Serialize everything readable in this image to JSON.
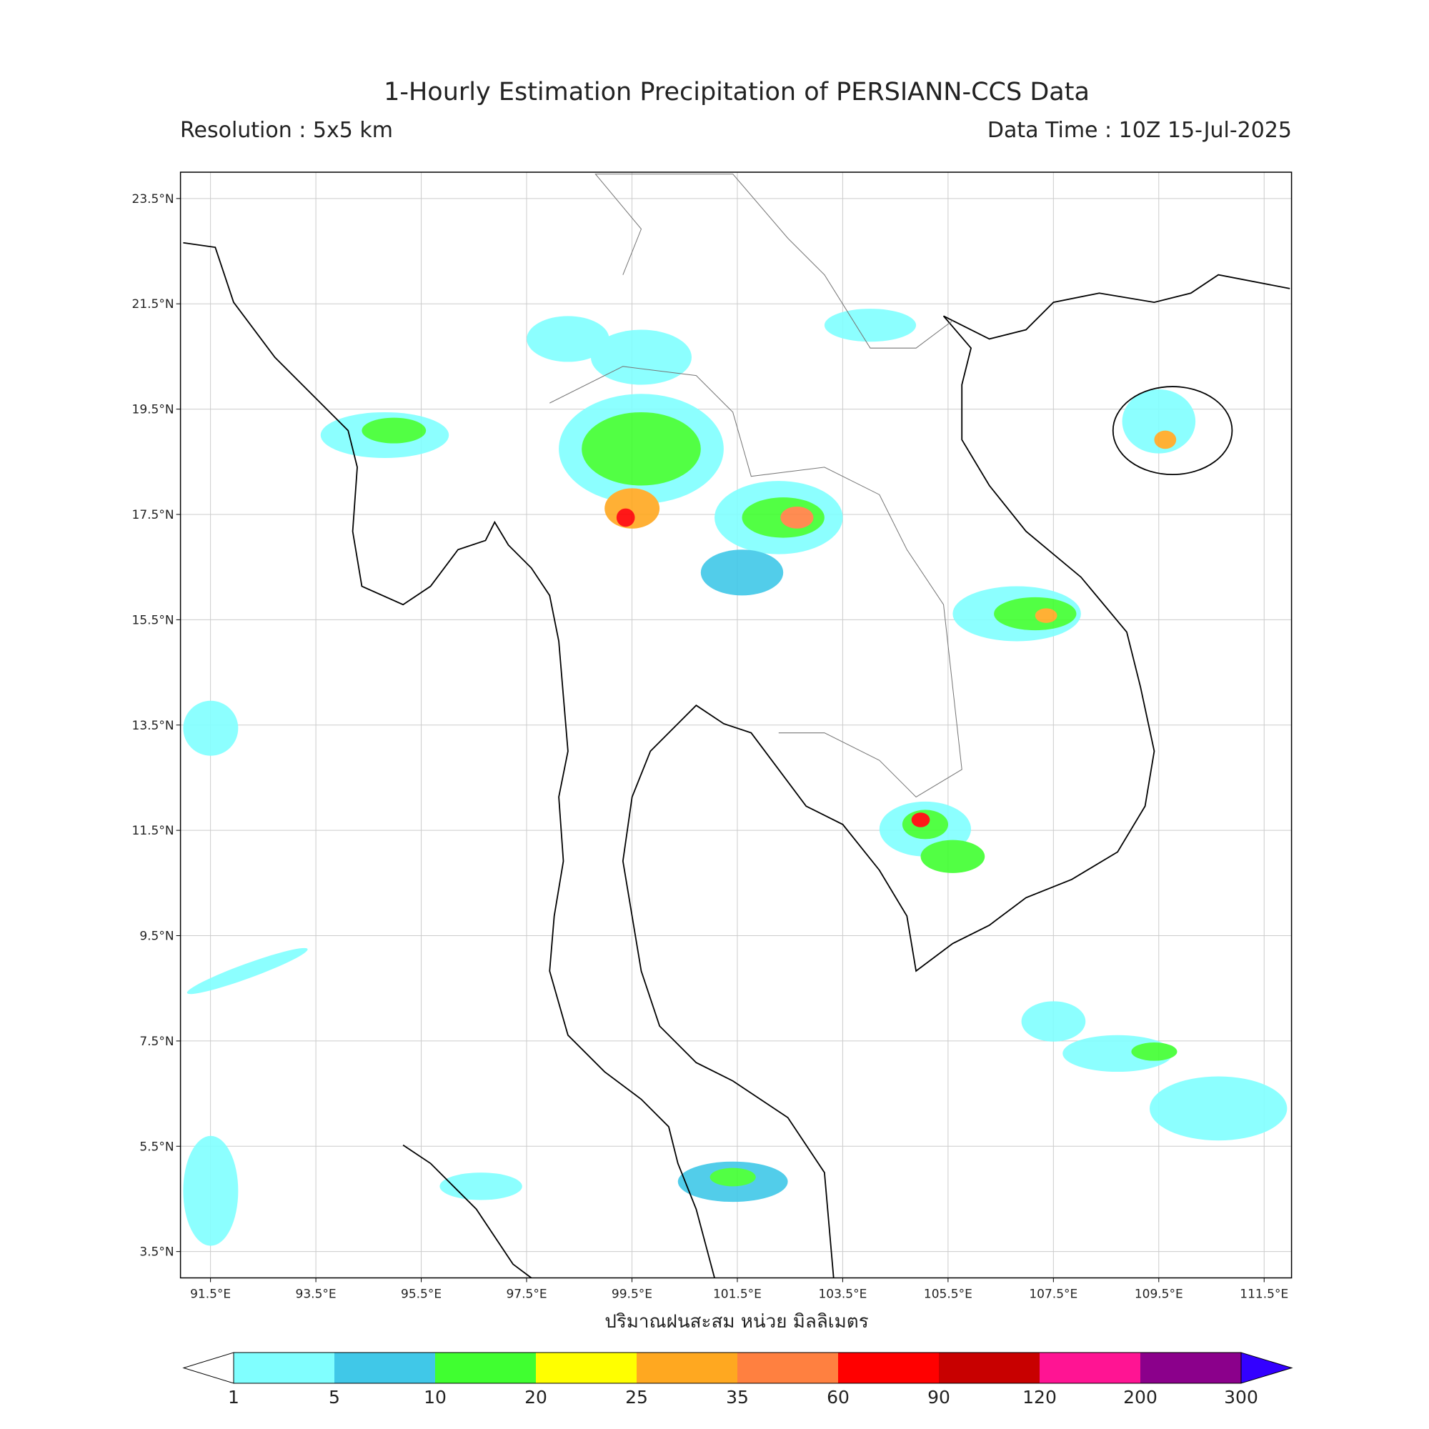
{
  "header": {
    "title": "1-Hourly Estimation Precipitation of PERSIANN-CCS Data",
    "resolution": "Resolution : 5x5 km",
    "data_time": "Data Time : 10Z 15-Jul-2025"
  },
  "map": {
    "lonlim": [
      90.93,
      112.02
    ],
    "latlim": [
      3.0,
      24.0
    ],
    "lon_ticks": [
      {
        "value": 91.5,
        "label": "91.5°E"
      },
      {
        "value": 93.5,
        "label": "93.5°E"
      },
      {
        "value": 95.5,
        "label": "95.5°E"
      },
      {
        "value": 97.5,
        "label": "97.5°E"
      },
      {
        "value": 99.5,
        "label": "99.5°E"
      },
      {
        "value": 101.5,
        "label": "101.5°E"
      },
      {
        "value": 103.5,
        "label": "103.5°E"
      },
      {
        "value": 105.5,
        "label": "105.5°E"
      },
      {
        "value": 107.5,
        "label": "107.5°E"
      },
      {
        "value": 109.5,
        "label": "109.5°E"
      },
      {
        "value": 111.5,
        "label": "111.5°E"
      }
    ],
    "lat_ticks": [
      {
        "value": 3.5,
        "label": "3.5°N"
      },
      {
        "value": 5.5,
        "label": "5.5°N"
      },
      {
        "value": 7.5,
        "label": "7.5°N"
      },
      {
        "value": 9.5,
        "label": "9.5°N"
      },
      {
        "value": 11.5,
        "label": "11.5°N"
      },
      {
        "value": 13.5,
        "label": "13.5°N"
      },
      {
        "value": 15.5,
        "label": "15.5°N"
      },
      {
        "value": 17.5,
        "label": "17.5°N"
      },
      {
        "value": 19.5,
        "label": "19.5°N"
      },
      {
        "value": 21.5,
        "label": "21.5°N"
      },
      {
        "value": 23.5,
        "label": "23.5°N"
      }
    ],
    "xlabel": "ปริมาณฝนสะสม หน่วย มิลลิเมตร"
  },
  "colorbar": {
    "levels": [
      1,
      5,
      10,
      20,
      25,
      35,
      60,
      90,
      120,
      200,
      300
    ],
    "colors": [
      "#80ffff",
      "#40c8e8",
      "#40ff30",
      "#ffff00",
      "#ffa820",
      "#ff8040",
      "#ff0000",
      "#c80000",
      "#ff1493",
      "#8b008b"
    ],
    "over_color": "#3300ff",
    "under_color": "#ffffff"
  }
}
